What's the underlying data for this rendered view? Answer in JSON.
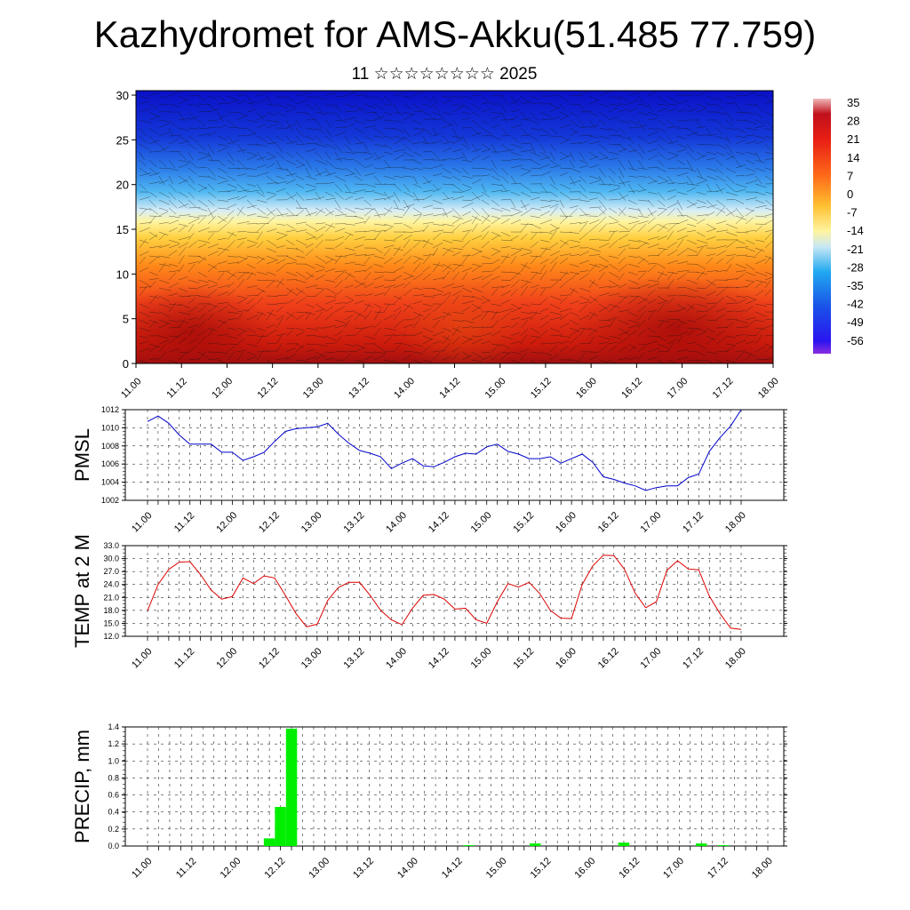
{
  "title": "Kazhydromet for AMS-Akku(51.485 77.759)",
  "subtitle": "11 ☆☆☆☆☆☆☆☆ 2025",
  "colors": {
    "pmsl": "#0000cc",
    "temp": "#dd0000",
    "precip": "#00ee00"
  },
  "chart_data": [
    {
      "type": "heatmap",
      "title": "Kazhydromet for AMS-Akku(51.485 77.759)",
      "x_ticks": [
        "11.00",
        "11.12",
        "12.00",
        "12.12",
        "13.00",
        "13.12",
        "14.00",
        "14.12",
        "15.00",
        "15.12",
        "16.00",
        "16.12",
        "17.00",
        "17.12",
        "18.00"
      ],
      "y_ticks": [
        "0",
        "5",
        "10",
        "15",
        "20",
        "25",
        "30"
      ],
      "ylim": [
        0,
        30.5
      ],
      "colorbar": {
        "labels": [
          "35",
          "28",
          "21",
          "14",
          "7",
          "0",
          "-7",
          "-14",
          "-21",
          "-28",
          "-35",
          "-42",
          "-49",
          "-56"
        ]
      },
      "overlay": "wind barbs"
    },
    {
      "type": "line",
      "ylabel": "PMSL",
      "ylim": [
        1002,
        1012
      ],
      "y_ticks": [
        "1002",
        "1004",
        "1006",
        "1008",
        "1010",
        "1012"
      ],
      "x_ticks": [
        "11.00",
        "11.12",
        "12.00",
        "12.12",
        "13.00",
        "13.12",
        "14.00",
        "14.12",
        "15.00",
        "15.12",
        "16.00",
        "16.12",
        "17.00",
        "17.12",
        "18.00"
      ],
      "x_hours": [
        0,
        3,
        6,
        9,
        12,
        15,
        18,
        21,
        24,
        27,
        30,
        33,
        36,
        39,
        42,
        45,
        48,
        51,
        54,
        57,
        60,
        63,
        66,
        69,
        72,
        75,
        78,
        81,
        84,
        87,
        90,
        93,
        96,
        99,
        102,
        105,
        108,
        111,
        114,
        117,
        120,
        123,
        126,
        129,
        132,
        135,
        138,
        141,
        144,
        147,
        150,
        153,
        156,
        159,
        162,
        165,
        168
      ],
      "values": [
        1010.7,
        1011.3,
        1010.5,
        1009.2,
        1008.2,
        1008.2,
        1008.2,
        1007.3,
        1007.3,
        1006.4,
        1006.8,
        1007.3,
        1008.5,
        1009.6,
        1009.9,
        1010.0,
        1010.1,
        1010.5,
        1009.3,
        1008.3,
        1007.5,
        1007.2,
        1006.8,
        1005.5,
        1006.1,
        1006.6,
        1005.8,
        1005.7,
        1006.2,
        1006.8,
        1007.2,
        1007.1,
        1007.9,
        1008.2,
        1007.4,
        1007.1,
        1006.6,
        1006.6,
        1006.8,
        1006.1,
        1006.6,
        1007.1,
        1006.2,
        1004.6,
        1004.3,
        1003.9,
        1003.6,
        1003.1,
        1003.4,
        1003.6,
        1003.6,
        1004.5,
        1004.9,
        1007.4,
        1008.9,
        1010.2,
        1012.0
      ]
    },
    {
      "type": "line",
      "ylabel": "TEMP at 2 M",
      "ylim": [
        12,
        33
      ],
      "y_ticks": [
        "12.0",
        "15.0",
        "18.0",
        "21.0",
        "24.0",
        "27.0",
        "30.0",
        "33.0"
      ],
      "x_ticks": [
        "11.00",
        "11.12",
        "12.00",
        "12.12",
        "13.00",
        "13.12",
        "14.00",
        "14.12",
        "15.00",
        "15.12",
        "16.00",
        "16.12",
        "17.00",
        "17.12",
        "18.00"
      ],
      "x_hours": [
        0,
        3,
        6,
        9,
        12,
        15,
        18,
        21,
        24,
        27,
        30,
        33,
        36,
        39,
        42,
        45,
        48,
        51,
        54,
        57,
        60,
        63,
        66,
        69,
        72,
        75,
        78,
        81,
        84,
        87,
        90,
        93,
        96,
        99,
        102,
        105,
        108,
        111,
        114,
        117,
        120,
        123,
        126,
        129,
        132,
        135,
        138,
        141,
        144,
        147,
        150,
        153,
        156,
        159,
        162,
        165,
        168
      ],
      "values": [
        17.9,
        24.0,
        27.5,
        29.2,
        29.3,
        26.3,
        22.7,
        20.6,
        21.2,
        25.5,
        24.2,
        26.0,
        25.5,
        21.5,
        17.3,
        14.2,
        14.8,
        20.3,
        23.3,
        24.5,
        24.5,
        21.5,
        18.0,
        15.8,
        14.7,
        18.5,
        21.5,
        21.7,
        20.6,
        18.3,
        18.5,
        15.8,
        15.0,
        20.0,
        24.2,
        23.4,
        24.5,
        21.9,
        18.0,
        16.2,
        16.1,
        24.0,
        28.3,
        30.8,
        30.7,
        27.5,
        22.0,
        18.6,
        20.0,
        27.3,
        29.5,
        27.6,
        27.4,
        21.3,
        17.3,
        13.9,
        13.6
      ]
    },
    {
      "type": "bar",
      "ylabel": "PRECIP, mm",
      "ylim": [
        0,
        1.4
      ],
      "y_ticks": [
        "0.0",
        "0.2",
        "0.4",
        "0.6",
        "0.8",
        "1.0",
        "1.2",
        "1.4"
      ],
      "x_ticks": [
        "11.00",
        "11.12",
        "12.00",
        "12.12",
        "13.00",
        "13.12",
        "14.00",
        "14.12",
        "15.00",
        "15.12",
        "16.00",
        "16.12",
        "17.00",
        "17.12",
        "18.00"
      ],
      "bar_hours": [
        33,
        36,
        39,
        87,
        105,
        129,
        150,
        156
      ],
      "values": [
        0.09,
        0.46,
        1.38,
        0.01,
        0.03,
        0.04,
        0.03,
        0.01
      ]
    }
  ]
}
